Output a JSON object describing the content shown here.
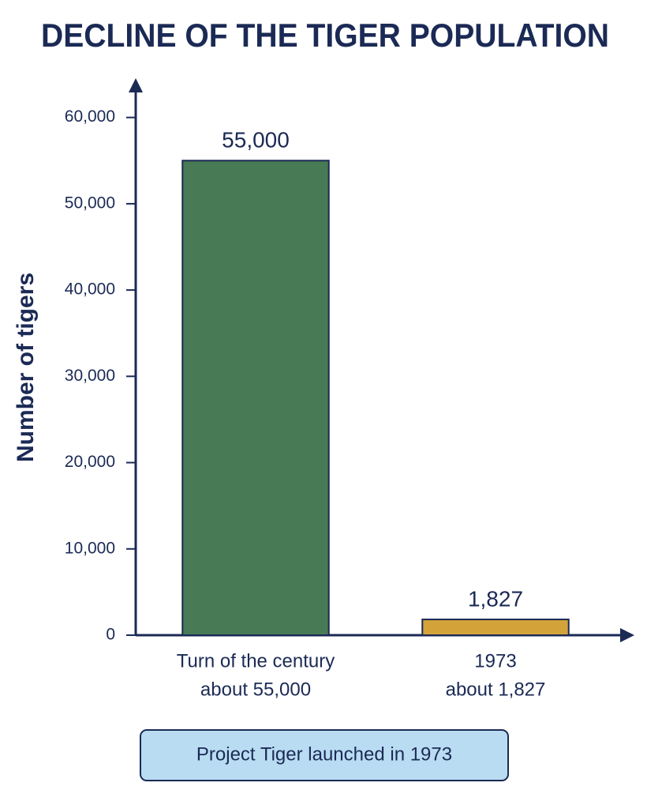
{
  "chart_data": {
    "type": "bar",
    "title": "DECLINE OF THE TIGER POPULATION",
    "y_label": "Number of tigers",
    "categories": [
      "Turn of the century",
      "1973"
    ],
    "category_sublabels": [
      "about 55,000",
      "about 1,827"
    ],
    "values": [
      55000,
      1827
    ],
    "value_labels": [
      "55,000",
      "1,827"
    ],
    "colors": [
      "#487a55",
      "#d3a33a"
    ],
    "ylim": [
      0,
      64000
    ],
    "yticks": [
      0,
      {
        "value": 10000,
        "label": "10,000"
      },
      {
        "value": 20000,
        "label": "20,000"
      },
      {
        "value": 30000,
        "label": "30,000"
      },
      {
        "value": 40000,
        "label": "40,000"
      },
      {
        "value": 50000,
        "label": "50,000"
      },
      {
        "value": 60000,
        "label": "60,000"
      }
    ],
    "grid": false,
    "annotation": "Project Tiger launched in 1973"
  }
}
